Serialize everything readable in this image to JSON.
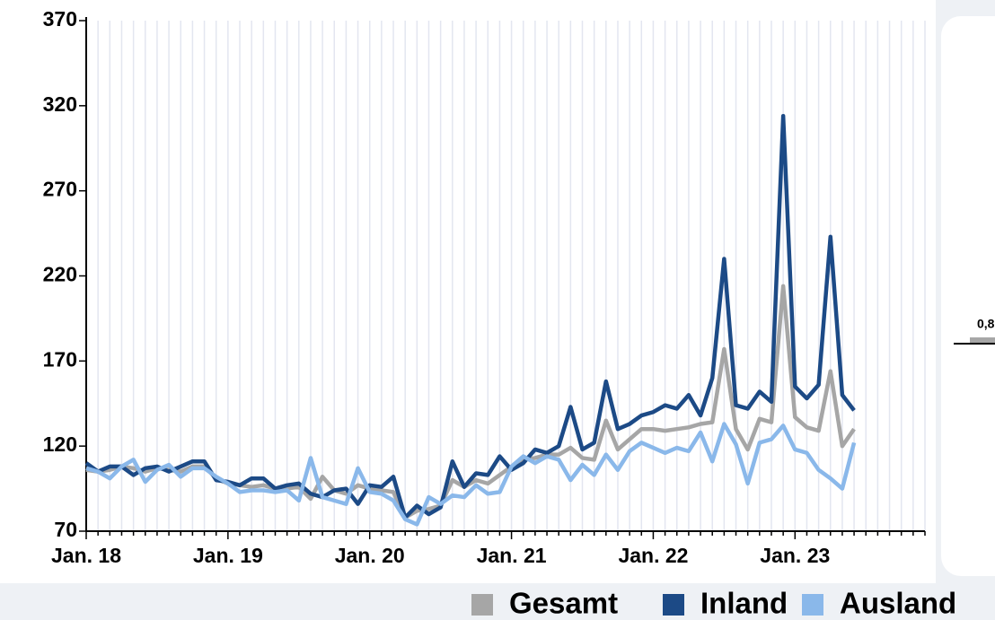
{
  "chart_data": [
    {
      "type": "line",
      "categories": [
        "Jan. 18",
        null,
        null,
        null,
        null,
        null,
        null,
        null,
        null,
        null,
        null,
        null,
        "Jan. 19",
        null,
        null,
        null,
        null,
        null,
        null,
        null,
        null,
        null,
        null,
        null,
        "Jan. 20",
        null,
        null,
        null,
        null,
        null,
        null,
        null,
        null,
        null,
        null,
        null,
        "Jan. 21",
        null,
        null,
        null,
        null,
        null,
        null,
        null,
        null,
        null,
        null,
        null,
        "Jan. 22",
        null,
        null,
        null,
        null,
        null,
        null,
        null,
        null,
        null,
        null,
        null,
        "Jan. 23",
        null,
        null,
        null,
        null,
        null,
        null,
        null,
        null,
        null,
        null,
        null
      ],
      "series": [
        {
          "name": "Gesamt",
          "color": "#a6a6a6",
          "values": [
            106,
            105,
            106,
            108,
            107,
            105,
            107,
            106,
            105,
            108,
            108,
            101,
            98,
            97,
            96,
            97,
            95,
            95,
            96,
            89,
            102,
            94,
            92,
            97,
            95,
            94,
            93,
            78,
            82,
            83,
            85,
            100,
            96,
            100,
            98,
            103,
            108,
            112,
            113,
            115,
            115,
            119,
            113,
            112,
            135,
            118,
            124,
            130,
            130,
            129,
            130,
            131,
            133,
            134,
            177,
            130,
            118,
            136,
            134,
            214,
            137,
            131,
            129,
            164,
            120,
            130,
            null,
            null,
            null,
            null,
            null,
            null
          ]
        },
        {
          "name": "Inland",
          "color": "#1c4a86",
          "values": [
            110,
            105,
            108,
            108,
            103,
            107,
            108,
            105,
            108,
            111,
            111,
            100,
            99,
            97,
            101,
            101,
            95,
            97,
            98,
            92,
            90,
            94,
            95,
            86,
            97,
            96,
            102,
            78,
            85,
            80,
            84,
            111,
            96,
            104,
            103,
            114,
            106,
            110,
            118,
            116,
            120,
            143,
            118,
            122,
            158,
            130,
            133,
            138,
            140,
            144,
            142,
            150,
            138,
            160,
            230,
            144,
            142,
            152,
            146,
            314,
            155,
            148,
            156,
            243,
            150,
            141,
            null,
            null,
            null,
            null,
            null,
            null
          ]
        },
        {
          "name": "Ausland",
          "color": "#8ab8ea",
          "values": [
            107,
            105,
            101,
            108,
            112,
            99,
            106,
            109,
            102,
            107,
            107,
            102,
            98,
            93,
            94,
            94,
            93,
            94,
            88,
            113,
            90,
            88,
            86,
            107,
            93,
            92,
            88,
            77,
            74,
            90,
            86,
            91,
            90,
            97,
            92,
            93,
            108,
            114,
            110,
            114,
            112,
            100,
            109,
            103,
            115,
            106,
            117,
            122,
            119,
            116,
            119,
            117,
            128,
            111,
            133,
            121,
            98,
            122,
            124,
            132,
            118,
            116,
            106,
            101,
            95,
            122,
            null,
            null,
            null,
            null,
            null,
            null
          ]
        }
      ],
      "ylim": [
        70,
        370
      ],
      "yticks": [
        70,
        120,
        170,
        220,
        270,
        320,
        370
      ],
      "grid": true,
      "legend": "bottom"
    },
    {
      "type": "bar",
      "categories": [
        null
      ],
      "values": [
        0.8
      ],
      "value_labels": [
        "0,8"
      ],
      "color": "#a6a6a6",
      "ylim": [
        0,
        10
      ]
    }
  ]
}
